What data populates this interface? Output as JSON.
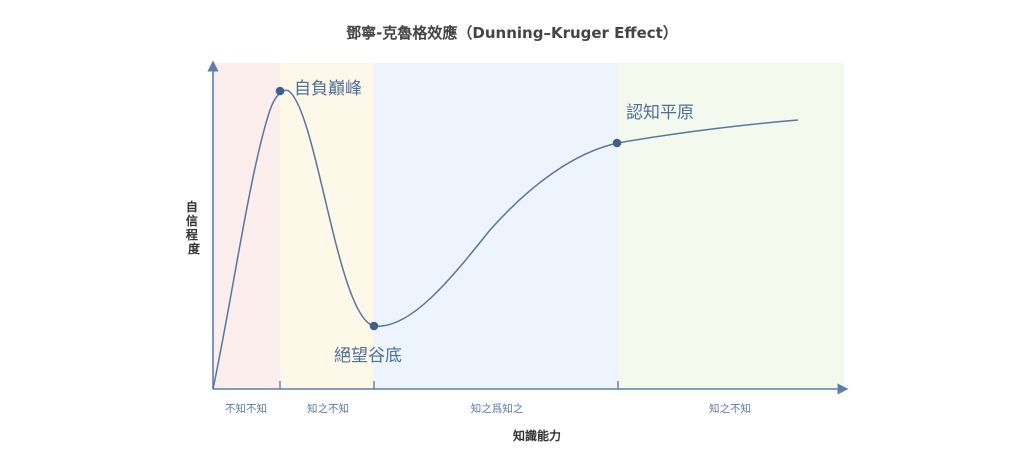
{
  "title": "鄧寧-克魯格效應（Dunning–Kruger Effect）",
  "axes": {
    "y_label": "自信程度",
    "x_label": "知識能力"
  },
  "zones": [
    {
      "id": "zone-1",
      "label": "不知不知",
      "color": "#fdeeee"
    },
    {
      "id": "zone-2",
      "label": "知之不知",
      "color": "#fef8e8"
    },
    {
      "id": "zone-3",
      "label": "知之爲知之",
      "color": "#eef4fb"
    },
    {
      "id": "zone-4",
      "label": "知之不知",
      "color": "#f4f9ee"
    }
  ],
  "stages": {
    "peak": "自負巔峰",
    "valley": "絕望谷底",
    "plateau": "認知平原"
  },
  "colors": {
    "axis": "#5b7fa8",
    "curve": "#5677a0",
    "marker": "#3f5f8c"
  }
}
